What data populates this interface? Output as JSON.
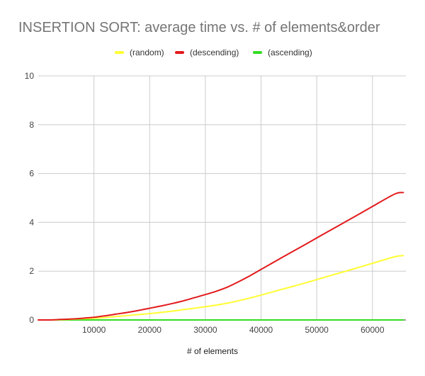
{
  "chart_data": {
    "type": "line",
    "title": "INSERTION SORT: average time vs. # of elements&order",
    "xlabel": "# of elements",
    "ylabel": "",
    "xlim": [
      0,
      66000
    ],
    "ylim": [
      0,
      10
    ],
    "x_ticks": [
      10000,
      20000,
      30000,
      40000,
      50000,
      60000
    ],
    "x_tick_labels": [
      "10000",
      "20000",
      "30000",
      "40000",
      "50000",
      "60000"
    ],
    "y_ticks": [
      0,
      2,
      4,
      6,
      8,
      10
    ],
    "y_tick_labels": [
      "0",
      "2",
      "4",
      "6",
      "8",
      "10"
    ],
    "grid": true,
    "legend_position": "top",
    "x": [
      0,
      2000,
      4000,
      6000,
      8000,
      10000,
      12000,
      14000,
      16000,
      18000,
      20000,
      22000,
      24000,
      26000,
      28000,
      30000,
      32000,
      34000,
      36000,
      38000,
      40000,
      44000,
      48000,
      52000,
      56000,
      60000,
      64000,
      65536
    ],
    "series": [
      {
        "name": "(random)",
        "color": "#ffff33",
        "values": [
          0,
          0.0,
          0.01,
          0.03,
          0.05,
          0.07,
          0.1,
          0.14,
          0.18,
          0.22,
          0.26,
          0.31,
          0.36,
          0.42,
          0.48,
          0.54,
          0.61,
          0.69,
          0.79,
          0.9,
          1.02,
          1.27,
          1.52,
          1.79,
          2.05,
          2.32,
          2.59,
          2.64
        ]
      },
      {
        "name": "(descending)",
        "color": "#e31a1c",
        "values": [
          0,
          0.0,
          0.02,
          0.04,
          0.07,
          0.11,
          0.17,
          0.24,
          0.31,
          0.39,
          0.48,
          0.57,
          0.67,
          0.78,
          0.91,
          1.04,
          1.18,
          1.35,
          1.57,
          1.81,
          2.07,
          2.59,
          3.1,
          3.62,
          4.13,
          4.65,
          5.16,
          5.22
        ]
      },
      {
        "name": "(ascending)",
        "color": "#33dd22",
        "values": [
          0,
          0,
          0,
          0,
          0,
          0,
          0,
          0,
          0,
          0,
          0,
          0,
          0,
          0,
          0,
          0,
          0,
          0,
          0,
          0,
          0,
          0,
          0,
          0,
          0,
          0,
          0,
          0
        ]
      }
    ]
  }
}
